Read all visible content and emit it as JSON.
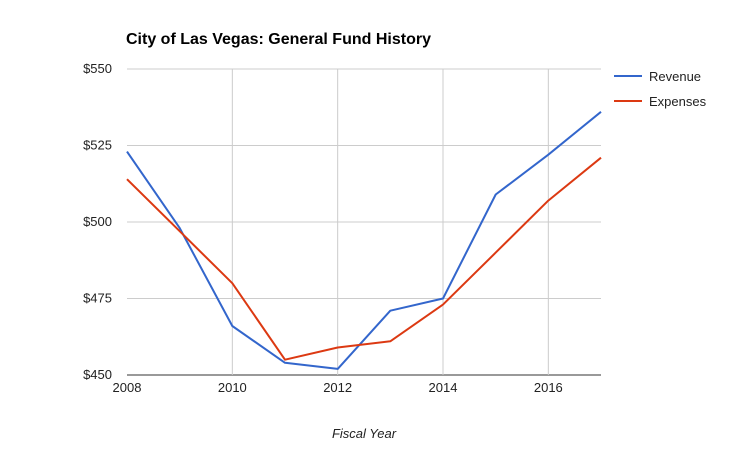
{
  "chart_data": {
    "type": "line",
    "title": "City of Las Vegas: General Fund History",
    "xlabel": "Fiscal Year",
    "ylabel": "",
    "x": [
      2008,
      2009,
      2010,
      2011,
      2012,
      2013,
      2014,
      2015,
      2016,
      2017
    ],
    "x_ticks": [
      "2008",
      "2010",
      "2012",
      "2014",
      "2016"
    ],
    "xlim": [
      2008,
      2017
    ],
    "y_ticks": [
      "$550",
      "$525",
      "$500",
      "$475",
      "$450"
    ],
    "ylim": [
      450,
      550
    ],
    "grid": true,
    "legend_position": "right",
    "series": [
      {
        "name": "Revenue",
        "color": "#3366cc",
        "values": [
          523,
          498,
          466,
          454,
          452,
          471,
          475,
          509,
          522,
          536
        ]
      },
      {
        "name": "Expenses",
        "color": "#dc3912",
        "values": [
          514,
          497,
          480,
          455,
          459,
          461,
          473,
          490,
          507,
          521
        ]
      }
    ]
  }
}
